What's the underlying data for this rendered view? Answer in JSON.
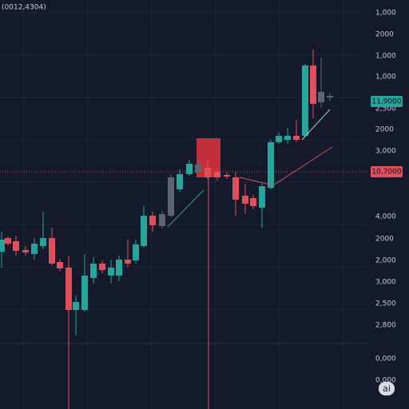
{
  "header": {
    "title": "(0012,4304)"
  },
  "axis": {
    "labels": [
      "1,000",
      "2000",
      "1,000",
      "1,000",
      "2,500",
      "2000",
      "3,000",
      "4,000",
      "2000",
      "2,000",
      "3,000",
      "2,500",
      "2,800",
      "0,000",
      "0,000"
    ]
  },
  "price_tags": {
    "current": "11,9000",
    "marker": "10,7000"
  },
  "badge": "ai"
}
